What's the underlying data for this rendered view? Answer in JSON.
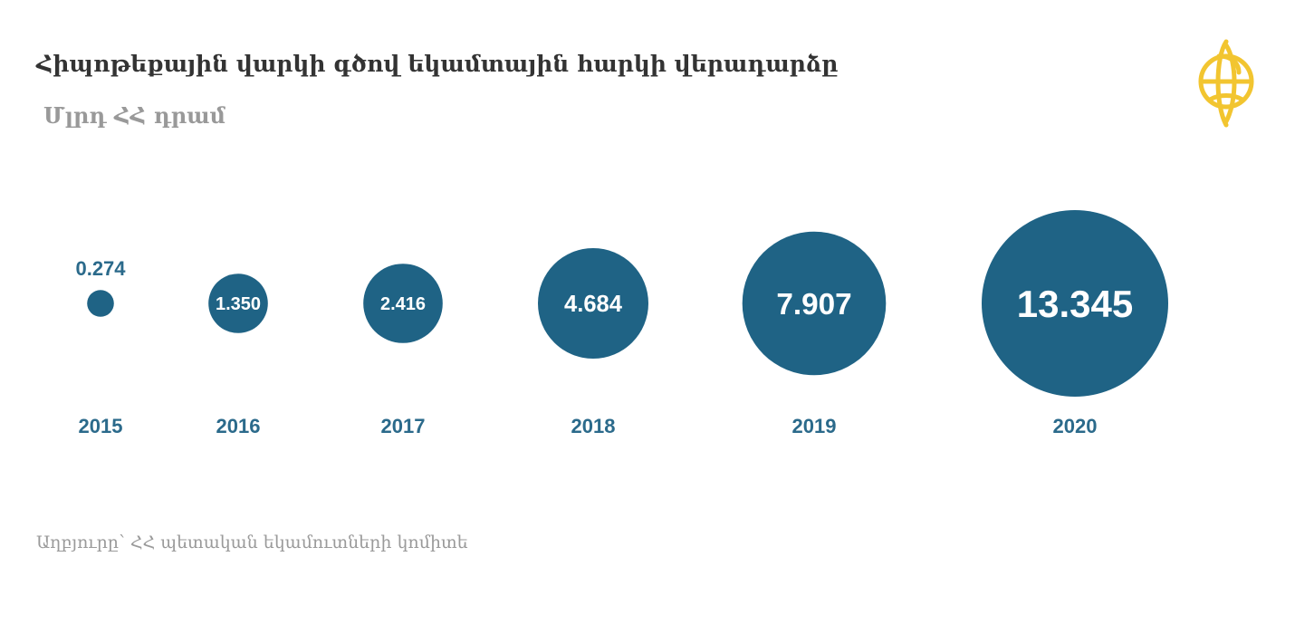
{
  "title": "Հիպոթեքային վարկի գծով եկամտային հարկի վերադարձը",
  "subtitle": "Մլրդ ՀՀ դրամ",
  "source": "Աղբյուրը՝ ՀՀ պետական եկամուտների կոմիտե",
  "colors": {
    "bubble": "#1f6385",
    "year_label": "#2b6a8b",
    "outside_label": "#2b6a8b",
    "inside_label": "#ffffff",
    "logo": "#f2c530"
  },
  "logo_icon": "globe-emblem-icon",
  "chart_data": {
    "type": "bubble",
    "categories": [
      "2015",
      "2016",
      "2017",
      "2018",
      "2019",
      "2020"
    ],
    "values": [
      0.274,
      1.35,
      2.416,
      4.684,
      7.907,
      13.345
    ],
    "value_labels": [
      "0.274",
      "1.350",
      "2.416",
      "4.684",
      "7.907",
      "13.345"
    ],
    "title": "Հիպոթեքային վարկի գծով եկամտային հարկի վերադարձը",
    "unit": "Մլրդ ՀՀ դրամ",
    "grid": false,
    "legend": "none"
  }
}
